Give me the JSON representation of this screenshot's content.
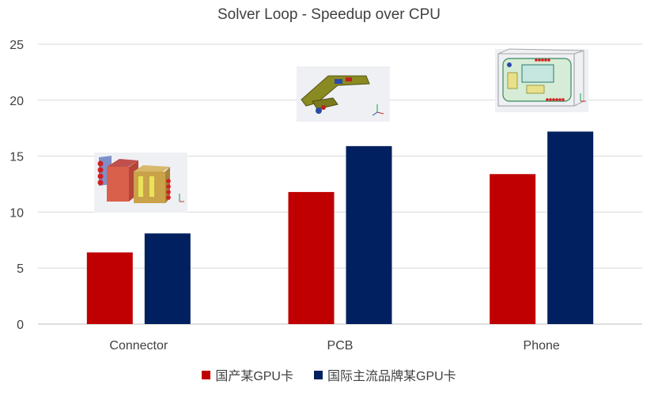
{
  "chart_data": {
    "type": "bar",
    "title": "Solver Loop - Speedup over CPU",
    "categories": [
      "Connector",
      "PCB",
      "Phone"
    ],
    "series": [
      {
        "name": "国产某GPU卡",
        "values": [
          6.4,
          11.8,
          13.4
        ],
        "color": "#C00000"
      },
      {
        "name": "国际主流品牌某GPU卡",
        "values": [
          8.1,
          15.9,
          17.2
        ],
        "color": "#002060"
      }
    ],
    "ylim": [
      0,
      25
    ],
    "yticks": [
      0,
      5,
      10,
      15,
      20,
      25
    ],
    "grid": true,
    "legend_position": "bottom",
    "thumbnails": [
      "connector-model-thumbnail",
      "pcb-model-thumbnail",
      "phone-model-thumbnail"
    ]
  }
}
